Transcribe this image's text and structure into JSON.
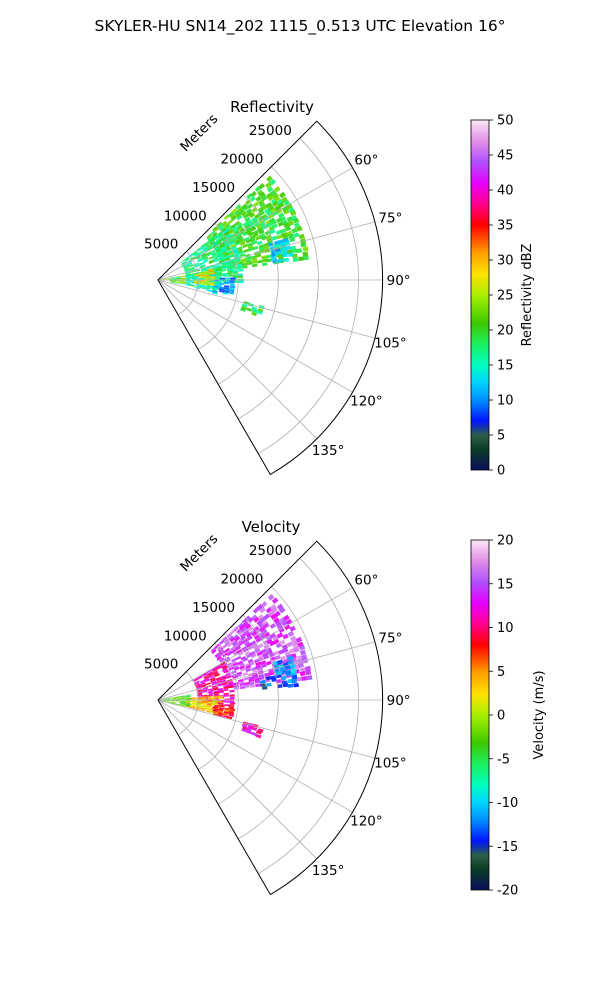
{
  "figure_title": "SKYLER-HU  SN14_202  1115_0.513 UTC Elevation 16°",
  "chart_data": [
    {
      "type": "heatmap",
      "projection": "polar-sector",
      "title": "Reflectivity",
      "range_label": "Meters",
      "range_ticks": [
        5000,
        10000,
        15000,
        20000,
        25000
      ],
      "r_max": 28000,
      "azimuth_range": [
        45,
        150
      ],
      "azimuth_ticks": [
        "60°",
        "75°",
        "90°",
        "105°",
        "120°",
        "135°"
      ],
      "grid": true,
      "colorbar": {
        "label": "Reflectivity dBZ",
        "range": [
          0,
          50
        ],
        "ticks": [
          "0",
          "5",
          "10",
          "15",
          "20",
          "25",
          "30",
          "35",
          "40",
          "45",
          "50"
        ]
      },
      "echo_regions": [
        {
          "az": [
            47,
            82
          ],
          "r": [
            8000,
            19000
          ],
          "value": 20
        },
        {
          "az": [
            52,
            92
          ],
          "r": [
            3500,
            10500
          ],
          "value": 17
        },
        {
          "az": [
            80,
            102
          ],
          "r": [
            1500,
            8000
          ],
          "value": 16
        },
        {
          "az": [
            78,
            94
          ],
          "r": [
            4500,
            7000
          ],
          "value": 28
        },
        {
          "az": [
            80,
            98
          ],
          "r": [
            200,
            3200
          ],
          "value": 24
        },
        {
          "az": [
            72,
            80
          ],
          "r": [
            14500,
            16500
          ],
          "value": 13
        },
        {
          "az": [
            104,
            109
          ],
          "r": [
            11000,
            13000
          ],
          "value": 19
        },
        {
          "az": [
            88,
            103
          ],
          "r": [
            7000,
            9000
          ],
          "value": 11
        }
      ]
    },
    {
      "type": "heatmap",
      "projection": "polar-sector",
      "title": "Velocity",
      "range_label": "Meters",
      "range_ticks": [
        5000,
        10000,
        15000,
        20000,
        25000
      ],
      "r_max": 28000,
      "azimuth_range": [
        45,
        150
      ],
      "azimuth_ticks": [
        "60°",
        "75°",
        "90°",
        "105°",
        "120°",
        "135°"
      ],
      "grid": true,
      "colorbar": {
        "label": "Velocity (m/s)",
        "range": [
          -20,
          20
        ],
        "ticks": [
          "-20",
          "-15",
          "-10",
          "-5",
          "0",
          "5",
          "10",
          "15",
          "20"
        ]
      },
      "echo_regions": [
        {
          "az": [
            47,
            82
          ],
          "r": [
            9000,
            19000
          ],
          "value": 15
        },
        {
          "az": [
            60,
            95
          ],
          "r": [
            5000,
            9500
          ],
          "value": 11
        },
        {
          "az": [
            78,
            84
          ],
          "r": [
            13000,
            17000
          ],
          "value": -13
        },
        {
          "az": [
            72,
            78
          ],
          "r": [
            15000,
            17000
          ],
          "value": -11
        },
        {
          "az": [
            86,
            103
          ],
          "r": [
            3500,
            7500
          ],
          "value": 3
        },
        {
          "az": [
            80,
            103
          ],
          "r": [
            200,
            3500
          ],
          "value": -3
        },
        {
          "az": [
            104,
            109
          ],
          "r": [
            11000,
            13000
          ],
          "value": 12
        },
        {
          "az": [
            95,
            103
          ],
          "r": [
            7000,
            9000
          ],
          "value": 8
        }
      ]
    }
  ]
}
